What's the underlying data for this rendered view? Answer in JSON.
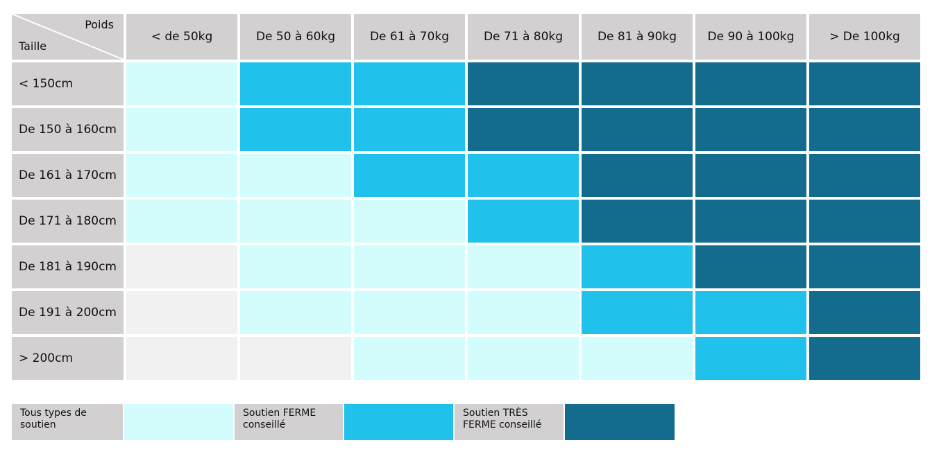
{
  "header": {
    "corner_poids": "Poids",
    "corner_taille": "Taille",
    "weights": [
      "< de 50kg",
      "De 50 à 60kg",
      "De 61 à 70kg",
      "De 71 à 80kg",
      "De 81 à 90kg",
      "De 90 à 100kg",
      "> De 100kg"
    ]
  },
  "rows": [
    {
      "label": "< 150cm",
      "levels": [
        "all",
        "firm",
        "firm",
        "very",
        "very",
        "very",
        "very"
      ]
    },
    {
      "label": "De 150 à 160cm",
      "levels": [
        "all",
        "firm",
        "firm",
        "very",
        "very",
        "very",
        "very"
      ]
    },
    {
      "label": "De 161 à 170cm",
      "levels": [
        "all",
        "all",
        "firm",
        "firm",
        "very",
        "very",
        "very"
      ]
    },
    {
      "label": "De 171 à 180cm",
      "levels": [
        "all",
        "all",
        "all",
        "firm",
        "very",
        "very",
        "very"
      ]
    },
    {
      "label": "De 181 à 190cm",
      "levels": [
        "none",
        "all",
        "all",
        "all",
        "firm",
        "very",
        "very"
      ]
    },
    {
      "label": "De 191 à 200cm",
      "levels": [
        "none",
        "all",
        "all",
        "all",
        "firm",
        "firm",
        "very"
      ]
    },
    {
      "label": "> 200cm",
      "levels": [
        "none",
        "none",
        "all",
        "all",
        "all",
        "firm",
        "very"
      ]
    }
  ],
  "colors": {
    "none": "#f1f1f1",
    "all": "#d3fcfd",
    "firm": "#20c1eb",
    "very": "#136c8e",
    "header_bg": "#d2d0d1"
  },
  "legend": {
    "all_line1": "Tous types de",
    "all_line2": "soutien",
    "firm_line1": "Soutien FERME",
    "firm_line2": "conseillé",
    "very_line1": "Soutien TRÈS",
    "very_line2": "FERME conseillé"
  }
}
